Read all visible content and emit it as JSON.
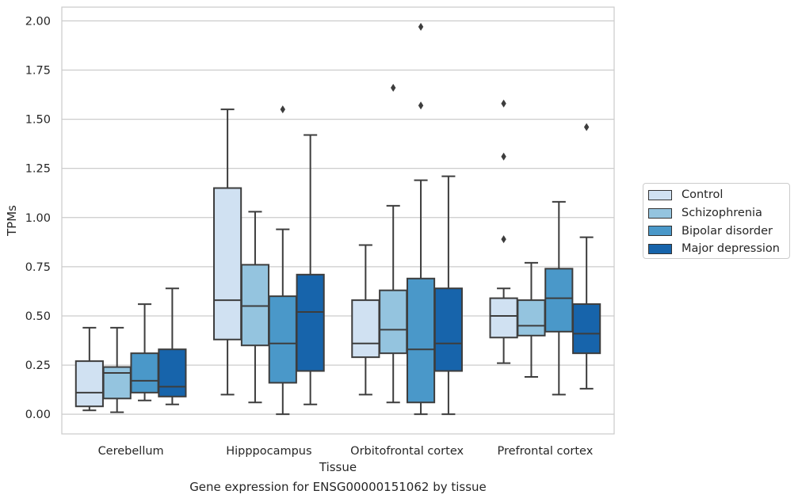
{
  "chart_data": {
    "type": "box",
    "title": "",
    "caption": "Gene expression for ENSG00000151062 by tissue",
    "xlabel": "Tissue",
    "ylabel": "TPMs",
    "ylim": [
      -0.1,
      2.07
    ],
    "yticks": [
      "0.00",
      "0.25",
      "0.50",
      "0.75",
      "1.00",
      "1.25",
      "1.50",
      "1.75",
      "2.00"
    ],
    "grid": true,
    "legend_position": "right",
    "categories": [
      "Cerebellum",
      "Hipppocampus",
      "Orbitofrontal cortex",
      "Prefrontal cortex"
    ],
    "series": [
      {
        "name": "Control",
        "color": "#d0e1f2",
        "boxes": [
          {
            "whisker_low": 0.02,
            "q1": 0.04,
            "median": 0.11,
            "q3": 0.27,
            "whisker_high": 0.44,
            "outliers": []
          },
          {
            "whisker_low": 0.1,
            "q1": 0.38,
            "median": 0.58,
            "q3": 1.15,
            "whisker_high": 1.55,
            "outliers": []
          },
          {
            "whisker_low": 0.1,
            "q1": 0.29,
            "median": 0.36,
            "q3": 0.58,
            "whisker_high": 0.86,
            "outliers": []
          },
          {
            "whisker_low": 0.26,
            "q1": 0.39,
            "median": 0.5,
            "q3": 0.59,
            "whisker_high": 0.64,
            "outliers": [
              0.89,
              1.31,
              1.58
            ]
          }
        ]
      },
      {
        "name": "Schizophrenia",
        "color": "#94c4df",
        "boxes": [
          {
            "whisker_low": 0.01,
            "q1": 0.08,
            "median": 0.21,
            "q3": 0.24,
            "whisker_high": 0.44,
            "outliers": []
          },
          {
            "whisker_low": 0.06,
            "q1": 0.35,
            "median": 0.55,
            "q3": 0.76,
            "whisker_high": 1.03,
            "outliers": []
          },
          {
            "whisker_low": 0.06,
            "q1": 0.31,
            "median": 0.43,
            "q3": 0.63,
            "whisker_high": 1.06,
            "outliers": [
              1.66
            ]
          },
          {
            "whisker_low": 0.19,
            "q1": 0.4,
            "median": 0.45,
            "q3": 0.58,
            "whisker_high": 0.77,
            "outliers": []
          }
        ]
      },
      {
        "name": "Bipolar disorder",
        "color": "#4a98c9",
        "boxes": [
          {
            "whisker_low": 0.07,
            "q1": 0.11,
            "median": 0.17,
            "q3": 0.31,
            "whisker_high": 0.56,
            "outliers": []
          },
          {
            "whisker_low": 0.0,
            "q1": 0.16,
            "median": 0.36,
            "q3": 0.6,
            "whisker_high": 0.94,
            "outliers": [
              1.55
            ]
          },
          {
            "whisker_low": 0.0,
            "q1": 0.06,
            "median": 0.33,
            "q3": 0.69,
            "whisker_high": 1.19,
            "outliers": [
              1.57,
              1.97
            ]
          },
          {
            "whisker_low": 0.1,
            "q1": 0.42,
            "median": 0.59,
            "q3": 0.74,
            "whisker_high": 1.08,
            "outliers": []
          }
        ]
      },
      {
        "name": "Major depression",
        "color": "#1764ab",
        "boxes": [
          {
            "whisker_low": 0.05,
            "q1": 0.09,
            "median": 0.14,
            "q3": 0.33,
            "whisker_high": 0.64,
            "outliers": []
          },
          {
            "whisker_low": 0.05,
            "q1": 0.22,
            "median": 0.52,
            "q3": 0.71,
            "whisker_high": 1.42,
            "outliers": []
          },
          {
            "whisker_low": 0.0,
            "q1": 0.22,
            "median": 0.36,
            "q3": 0.64,
            "whisker_high": 1.21,
            "outliers": []
          },
          {
            "whisker_low": 0.13,
            "q1": 0.31,
            "median": 0.41,
            "q3": 0.56,
            "whisker_high": 0.9,
            "outliers": [
              1.46
            ]
          }
        ]
      }
    ]
  }
}
